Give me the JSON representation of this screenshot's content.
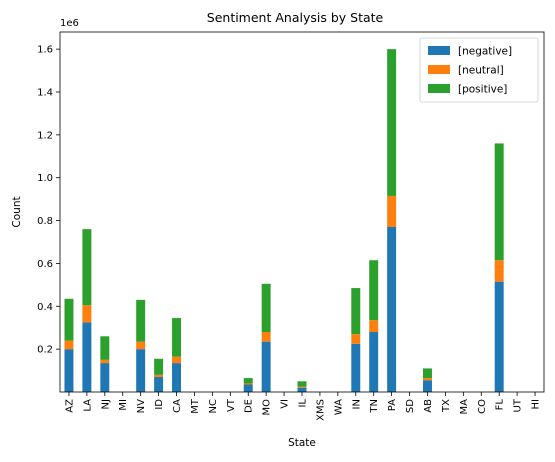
{
  "chart_data": {
    "type": "bar",
    "stacked": true,
    "title": "Sentiment Analysis by State",
    "xlabel": "State",
    "ylabel": "Count",
    "offset_text": "1e6",
    "ylim": [
      0,
      1.68
    ],
    "yticks": [
      0.2,
      0.4,
      0.6,
      0.8,
      1.0,
      1.2,
      1.4,
      1.6
    ],
    "ytick_labels": [
      "0.2",
      "0.4",
      "0.6",
      "0.8",
      "1.0",
      "1.2",
      "1.4",
      "1.6"
    ],
    "grid": false,
    "legend_position": "top-right",
    "categories": [
      "AZ",
      "LA",
      "NJ",
      "MI",
      "NV",
      "ID",
      "CA",
      "MT",
      "NC",
      "VT",
      "DE",
      "MO",
      "VI",
      "IL",
      "XMS",
      "WA",
      "IN",
      "TN",
      "PA",
      "SD",
      "AB",
      "TX",
      "MA",
      "CO",
      "FL",
      "UT",
      "HI"
    ],
    "series": [
      {
        "name": "[negative]",
        "color": "#1f77b4",
        "values": [
          0.2,
          0.325,
          0.135,
          0,
          0.2,
          0.07,
          0.135,
          0,
          0,
          0,
          0.035,
          0.235,
          0,
          0.02,
          0,
          0,
          0.225,
          0.28,
          0.77,
          0,
          0.055,
          0,
          0,
          0,
          0.515,
          0,
          0
        ]
      },
      {
        "name": "[neutral]",
        "color": "#ff7f0e",
        "values": [
          0.04,
          0.08,
          0.015,
          0,
          0.035,
          0.01,
          0.03,
          0,
          0,
          0,
          0.005,
          0.045,
          0,
          0.005,
          0,
          0,
          0.045,
          0.055,
          0.145,
          0,
          0.01,
          0,
          0,
          0,
          0.1,
          0,
          0
        ]
      },
      {
        "name": "[positive]",
        "color": "#2ca02c",
        "values": [
          0.195,
          0.355,
          0.11,
          0,
          0.195,
          0.075,
          0.18,
          0,
          0,
          0,
          0.025,
          0.225,
          0,
          0.025,
          0,
          0,
          0.215,
          0.28,
          0.685,
          0,
          0.045,
          0,
          0,
          0,
          0.545,
          0,
          0
        ]
      }
    ]
  }
}
